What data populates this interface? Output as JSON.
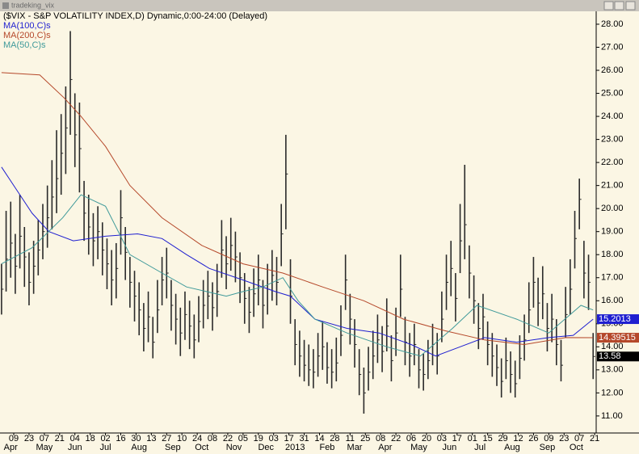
{
  "window": {
    "title": "tradeking_vix"
  },
  "chart_data": {
    "type": "ohlc",
    "title": "($VIX - S&P VOLATILITY INDEX,D) Dynamic,0:00-24:00 (Delayed)",
    "bar_color": "#2a2a2a",
    "x": [
      0,
      3,
      6,
      9,
      12,
      15,
      18,
      21,
      24,
      27,
      30,
      33,
      36,
      39,
      42,
      45,
      48,
      51,
      54,
      57,
      60,
      63,
      66,
      69,
      72,
      75,
      78,
      81,
      84,
      87,
      90,
      93,
      96,
      99,
      102,
      105,
      108,
      111,
      114,
      117,
      120,
      123,
      126,
      129,
      132,
      135,
      138,
      141,
      144,
      147,
      150,
      153,
      156,
      159,
      162,
      165,
      168,
      171,
      174,
      177,
      180,
      183,
      186,
      189,
      192,
      195,
      198,
      201,
      204,
      207,
      210,
      213,
      216,
      219,
      222,
      225,
      228,
      231,
      234,
      237,
      240,
      243,
      246,
      249,
      252,
      255,
      258,
      261,
      264,
      267,
      270,
      273,
      276,
      279,
      282,
      285,
      288,
      291,
      294,
      297,
      300,
      303,
      306,
      309,
      312,
      315,
      318,
      321,
      324,
      327,
      330,
      333,
      336,
      339,
      342,
      345,
      348,
      351,
      354,
      357,
      360,
      363,
      366,
      369,
      372,
      375,
      378,
      381,
      384,
      387
    ],
    "high": [
      17.6,
      19.9,
      20.3,
      18.9,
      20.6,
      19.2,
      18.1,
      18.6,
      19.5,
      20.2,
      21.0,
      22.1,
      23.4,
      24.1,
      25.3,
      27.7,
      25.0,
      24.6,
      21.2,
      20.6,
      19.8,
      20.1,
      19.4,
      18.7,
      18.2,
      18.5,
      20.8,
      19.2,
      17.9,
      17.3,
      16.8,
      15.9,
      16.4,
      15.3,
      16.9,
      17.9,
      18.3,
      16.9,
      16.3,
      15.7,
      16.4,
      16.0,
      15.4,
      16.2,
      16.9,
      17.3,
      16.8,
      17.6,
      19.5,
      18.8,
      19.6,
      19.0,
      18.1,
      17.2,
      16.6,
      17.4,
      18.0,
      16.9,
      17.6,
      18.2,
      17.9,
      20.2,
      23.2,
      17.8,
      15.2,
      14.7,
      14.3,
      14.1,
      13.9,
      14.6,
      15.1,
      14.2,
      13.9,
      14.4,
      15.8,
      18.0,
      16.3,
      15.2,
      13.9,
      13.1,
      14.0,
      14.7,
      15.4,
      14.9,
      16.1,
      14.5,
      15.7,
      18.0,
      15.3,
      14.6,
      15.0,
      13.9,
      13.7,
      14.3,
      15.0,
      14.6,
      16.4,
      18.0,
      18.6,
      17.2,
      20.2,
      21.9,
      18.4,
      17.1,
      15.9,
      16.3,
      15.1,
      14.6,
      14.1,
      13.5,
      14.4,
      13.8,
      13.4,
      14.5,
      15.4,
      16.8,
      17.9,
      17.0,
      17.5,
      15.9,
      16.3,
      15.2,
      14.3,
      16.6,
      17.8,
      19.9,
      21.3,
      18.6,
      18.0,
      14.6
    ],
    "low": [
      15.4,
      16.4,
      17.0,
      16.3,
      17.4,
      16.6,
      15.8,
      16.3,
      17.1,
      17.8,
      18.3,
      19.1,
      19.8,
      20.6,
      21.5,
      23.2,
      21.8,
      20.7,
      18.6,
      18.0,
      17.5,
      17.8,
      17.1,
      16.5,
      15.8,
      16.1,
      18.0,
      16.9,
      15.7,
      15.1,
      14.5,
      13.8,
      14.2,
      13.5,
      14.6,
      15.8,
      16.1,
      14.7,
      14.1,
      13.6,
      14.3,
      13.9,
      13.5,
      14.2,
      14.8,
      15.2,
      14.7,
      15.3,
      17.0,
      16.5,
      17.3,
      16.8,
      15.9,
      15.0,
      14.6,
      15.3,
      15.8,
      14.8,
      15.4,
      16.0,
      15.8,
      17.5,
      19.1,
      15.0,
      13.2,
      12.7,
      12.5,
      12.3,
      12.2,
      12.7,
      13.0,
      12.4,
      12.2,
      12.5,
      13.6,
      15.6,
      14.1,
      13.1,
      11.9,
      11.1,
      12.1,
      12.6,
      13.3,
      12.9,
      13.8,
      12.5,
      13.6,
      15.3,
      13.2,
      12.7,
      13.2,
      12.2,
      12.1,
      12.6,
      13.2,
      12.8,
      14.2,
      15.6,
      16.2,
      15.1,
      17.2,
      17.8,
      16.1,
      15.0,
      13.9,
      14.3,
      13.2,
      12.7,
      12.3,
      11.8,
      12.6,
      12.0,
      11.8,
      12.6,
      13.4,
      14.6,
      15.7,
      14.9,
      15.2,
      13.8,
      14.2,
      13.2,
      12.5,
      14.4,
      15.4,
      17.4,
      19.1,
      16.1,
      15.6,
      12.6
    ],
    "close": [
      16.5,
      17.8,
      18.5,
      17.5,
      18.8,
      17.9,
      16.8,
      17.5,
      18.2,
      19.0,
      19.6,
      20.5,
      21.3,
      22.4,
      23.5,
      25.6,
      23.2,
      22.6,
      19.8,
      19.2,
      18.6,
      19.0,
      18.2,
      17.6,
      16.9,
      17.4,
      19.6,
      18.1,
      16.8,
      16.2,
      15.6,
      14.8,
      15.3,
      14.2,
      15.6,
      16.9,
      17.2,
      15.8,
      15.2,
      14.6,
      15.4,
      14.9,
      14.3,
      15.1,
      15.8,
      16.2,
      15.7,
      16.4,
      18.2,
      17.6,
      18.4,
      17.9,
      17.0,
      16.1,
      15.5,
      16.3,
      16.9,
      15.8,
      16.5,
      17.1,
      16.8,
      18.9,
      21.5,
      16.2,
      14.1,
      13.6,
      13.2,
      13.0,
      12.9,
      13.6,
      14.0,
      13.1,
      12.9,
      13.3,
      14.5,
      16.9,
      15.2,
      14.1,
      12.8,
      12.0,
      12.9,
      13.6,
      14.3,
      13.8,
      14.9,
      13.4,
      14.6,
      16.5,
      14.2,
      13.6,
      14.1,
      13.0,
      12.8,
      13.4,
      14.1,
      13.6,
      15.2,
      16.8,
      17.4,
      16.1,
      18.6,
      19.3,
      17.2,
      16.0,
      14.8,
      15.3,
      14.1,
      13.6,
      13.1,
      12.5,
      13.4,
      12.8,
      12.4,
      13.5,
      14.3,
      15.6,
      16.8,
      15.9,
      16.3,
      14.8,
      15.2,
      14.1,
      13.2,
      15.4,
      16.5,
      18.7,
      20.4,
      17.2,
      16.8,
      13.58
    ],
    "series": [
      {
        "name": "MA(100,C)s",
        "color": "#1f1fd0",
        "x": [
          0,
          10,
          20,
          31,
          47,
          68,
          89,
          105,
          121,
          136,
          158,
          179,
          189,
          205,
          226,
          247,
          268,
          284,
          300,
          316,
          337,
          358,
          374,
          387
        ],
        "values": [
          21.8,
          20.8,
          19.8,
          19.0,
          18.6,
          18.8,
          18.9,
          18.7,
          18.0,
          17.4,
          16.9,
          16.4,
          16.2,
          15.2,
          14.8,
          14.6,
          14.1,
          13.6,
          14.0,
          14.4,
          14.2,
          14.4,
          14.5,
          15.2013
        ]
      },
      {
        "name": "MA(200,C)s",
        "color": "#b5482a",
        "x": [
          0,
          25,
          41,
          52,
          68,
          84,
          105,
          131,
          158,
          184,
          210,
          237,
          263,
          290,
          316,
          342,
          369,
          387
        ],
        "values": [
          25.9,
          25.8,
          24.8,
          24.0,
          22.7,
          21.0,
          19.6,
          18.4,
          17.6,
          17.2,
          16.6,
          16.0,
          15.2,
          14.7,
          14.3,
          14.1,
          14.4,
          14.39515
        ]
      },
      {
        "name": "MA(50,C)s",
        "color": "#3f9a9a",
        "x": [
          0,
          20,
          40,
          52,
          68,
          84,
          105,
          121,
          147,
          158,
          171,
          184,
          194,
          205,
          226,
          252,
          274,
          295,
          311,
          337,
          358,
          379,
          387
        ],
        "values": [
          17.6,
          18.3,
          19.6,
          20.6,
          20.1,
          18.0,
          17.2,
          16.6,
          16.2,
          16.4,
          16.6,
          17.0,
          16.0,
          15.2,
          14.6,
          14.0,
          13.6,
          14.8,
          15.8,
          15.2,
          14.6,
          15.8,
          15.6
        ]
      }
    ],
    "xlim": [
      -1,
      389
    ],
    "ylim": [
      10.26,
      28.56
    ],
    "yticks": [
      {
        "value": 11,
        "label": "11.00"
      },
      {
        "value": 12,
        "label": "12.00"
      },
      {
        "value": 13,
        "label": "13.00"
      },
      {
        "value": 14,
        "label": "14.00"
      },
      {
        "value": 15,
        "label": "15.00"
      },
      {
        "value": 16,
        "label": "16.00"
      },
      {
        "value": 17,
        "label": "17.00"
      },
      {
        "value": 18,
        "label": "18.00"
      },
      {
        "value": 19,
        "label": "19.00"
      },
      {
        "value": 20,
        "label": "20.00"
      },
      {
        "value": 21,
        "label": "21.00"
      },
      {
        "value": 22,
        "label": "22.00"
      },
      {
        "value": 23,
        "label": "23.00"
      },
      {
        "value": 24,
        "label": "24.00"
      },
      {
        "value": 25,
        "label": "25.00"
      },
      {
        "value": 26,
        "label": "26.00"
      },
      {
        "value": 27,
        "label": "27.00"
      },
      {
        "value": 28,
        "label": "28.00"
      }
    ],
    "xticks": [
      {
        "value": 8,
        "label": "09"
      },
      {
        "value": 18,
        "label": "23"
      },
      {
        "value": 28,
        "label": "07"
      },
      {
        "value": 38,
        "label": "21"
      },
      {
        "value": 48,
        "label": "04"
      },
      {
        "value": 58,
        "label": "18"
      },
      {
        "value": 68,
        "label": "02"
      },
      {
        "value": 78,
        "label": "16"
      },
      {
        "value": 88,
        "label": "30"
      },
      {
        "value": 98,
        "label": "13"
      },
      {
        "value": 108,
        "label": "27"
      },
      {
        "value": 118,
        "label": "10"
      },
      {
        "value": 128,
        "label": "24"
      },
      {
        "value": 138,
        "label": "08"
      },
      {
        "value": 148,
        "label": "22"
      },
      {
        "value": 158,
        "label": "05"
      },
      {
        "value": 168,
        "label": "19"
      },
      {
        "value": 178,
        "label": "03"
      },
      {
        "value": 188,
        "label": "17"
      },
      {
        "value": 198,
        "label": "31"
      },
      {
        "value": 208,
        "label": "14"
      },
      {
        "value": 218,
        "label": "28"
      },
      {
        "value": 228,
        "label": "11"
      },
      {
        "value": 238,
        "label": "25"
      },
      {
        "value": 248,
        "label": "08"
      },
      {
        "value": 258,
        "label": "22"
      },
      {
        "value": 268,
        "label": "06"
      },
      {
        "value": 278,
        "label": "20"
      },
      {
        "value": 288,
        "label": "03"
      },
      {
        "value": 298,
        "label": "17"
      },
      {
        "value": 308,
        "label": "01"
      },
      {
        "value": 318,
        "label": "15"
      },
      {
        "value": 328,
        "label": "29"
      },
      {
        "value": 338,
        "label": "12"
      },
      {
        "value": 348,
        "label": "26"
      },
      {
        "value": 358,
        "label": "09"
      },
      {
        "value": 368,
        "label": "23"
      },
      {
        "value": 378,
        "label": "07"
      },
      {
        "value": 388,
        "label": "21"
      }
    ],
    "month_ticks": [
      {
        "value": 6,
        "label": "Apr"
      },
      {
        "value": 28,
        "label": "May"
      },
      {
        "value": 48,
        "label": "Jun"
      },
      {
        "value": 68,
        "label": "Jul"
      },
      {
        "value": 90,
        "label": "Aug"
      },
      {
        "value": 112,
        "label": "Sep"
      },
      {
        "value": 131,
        "label": "Oct"
      },
      {
        "value": 152,
        "label": "Nov"
      },
      {
        "value": 173,
        "label": "Dec"
      },
      {
        "value": 192,
        "label": "2013"
      },
      {
        "value": 213,
        "label": "Feb"
      },
      {
        "value": 231,
        "label": "Mar"
      },
      {
        "value": 251,
        "label": "Apr"
      },
      {
        "value": 273,
        "label": "May"
      },
      {
        "value": 293,
        "label": "Jun"
      },
      {
        "value": 313,
        "label": "Jul"
      },
      {
        "value": 334,
        "label": "Aug"
      },
      {
        "value": 357,
        "label": "Sep"
      },
      {
        "value": 376,
        "label": "Oct"
      }
    ]
  }
}
